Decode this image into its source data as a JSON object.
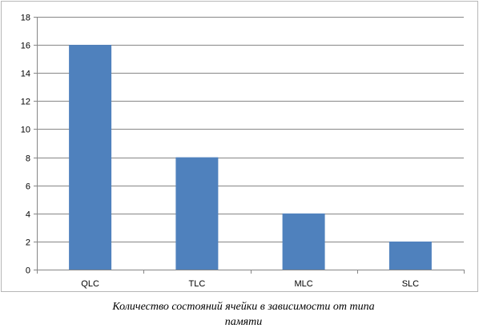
{
  "chart_data": {
    "type": "bar",
    "categories": [
      "QLC",
      "TLC",
      "MLC",
      "SLC"
    ],
    "values": [
      16,
      8,
      4,
      2
    ],
    "yticks": [
      "0",
      "2",
      "4",
      "6",
      "8",
      "10",
      "12",
      "14",
      "16",
      "18"
    ],
    "ylim": [
      0,
      18
    ],
    "grid": true,
    "bar_color": "#4f81bd",
    "caption_lines": [
      "Количество состояний ячейки в зависимости от типа",
      "памяти"
    ]
  }
}
